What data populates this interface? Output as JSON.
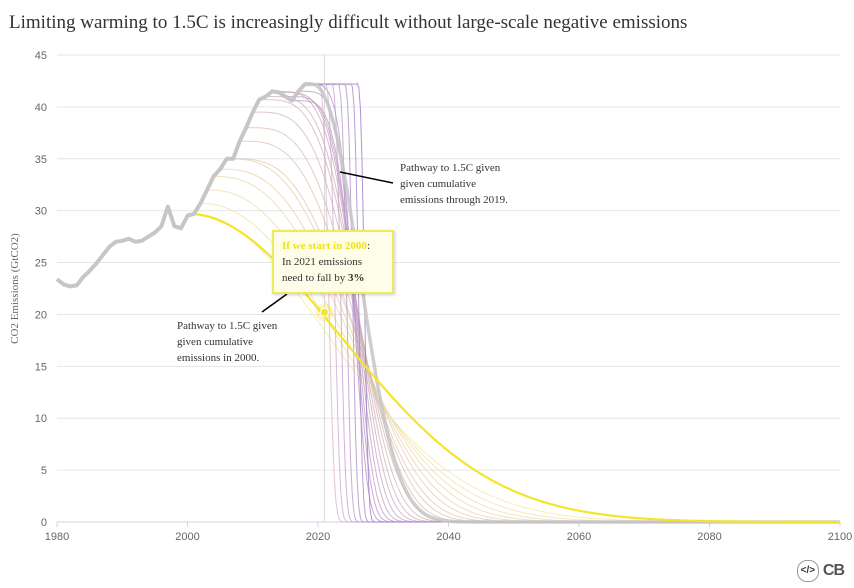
{
  "title": "Limiting warming to 1.5C is increasingly difficult without large-scale negative emissions",
  "colors": {
    "history": "#c6c6c6",
    "pathway_2000": "#f5e52a",
    "pathway_2019": "#c6c6c6",
    "fan_early": "#f4e7a0",
    "fan_late": "#b48cc8",
    "highlight_point": "#f5e52a",
    "tooltip_border": "#f0ea5a"
  },
  "annotations": {
    "pathway_2019": [
      "Pathway to 1.5C given",
      "given cumulative",
      "emissions through 2019."
    ],
    "pathway_2000": [
      "Pathway to 1.5C given",
      "given cumulative",
      "emissions in 2000."
    ]
  },
  "tooltip": {
    "head": "If we start in 2000",
    "head_suffix": ":",
    "line1": "In 2021 emissions",
    "line2_prefix": "need to fall by ",
    "line2_value": "3%"
  },
  "footer": {
    "embed_icon": "</>",
    "logo": "CB"
  },
  "chart_data": {
    "type": "line",
    "title": "Limiting warming to 1.5C is increasingly difficult without large-scale negative emissions",
    "ylabel": "CO2 Emissions (GtCO2)",
    "xlabel": "",
    "xlim": [
      1980,
      2100
    ],
    "ylim": [
      0,
      45
    ],
    "x_ticks": [
      1980,
      2000,
      2020,
      2040,
      2060,
      2080,
      2100
    ],
    "y_ticks": [
      0,
      5,
      10,
      15,
      20,
      25,
      30,
      35,
      40,
      45
    ],
    "grid": true,
    "marker_line_x": 2021,
    "historical": {
      "name": "",
      "x": [
        1980,
        1981,
        1982,
        1983,
        1984,
        1985,
        1986,
        1987,
        1988,
        1989,
        1990,
        1991,
        1992,
        1993,
        1994,
        1995,
        1996,
        1997,
        1998,
        1999,
        2000,
        2001,
        2002,
        2003,
        2004,
        2005,
        2006,
        2007,
        2008,
        2009,
        2010,
        2011,
        2012,
        2013,
        2014,
        2015,
        2016,
        2017,
        2018,
        2019
      ],
      "values": [
        23.4,
        22.9,
        22.7,
        22.8,
        23.6,
        24.2,
        24.9,
        25.7,
        26.5,
        27.0,
        27.1,
        27.3,
        27.0,
        27.1,
        27.5,
        27.9,
        28.5,
        30.4,
        28.5,
        28.3,
        29.5,
        29.7,
        30.7,
        32.0,
        33.3,
        34.0,
        35.0,
        35.0,
        36.7,
        38.0,
        39.5,
        40.7,
        41.0,
        41.5,
        41.4,
        41.0,
        40.6,
        41.5,
        42.2,
        42.2
      ]
    },
    "highlight": {
      "x": 2021,
      "y": 20.2
    }
  }
}
